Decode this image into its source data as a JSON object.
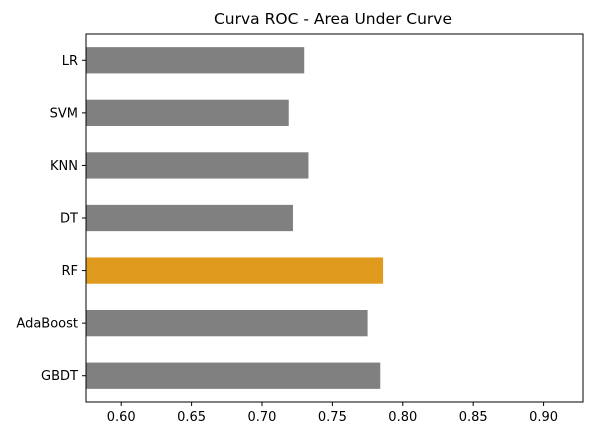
{
  "chart_data": {
    "type": "bar",
    "orientation": "horizontal",
    "title": "Curva ROC - Area Under Curve",
    "xlabel": "",
    "ylabel": "",
    "categories": [
      "LR",
      "SVM",
      "KNN",
      "DT",
      "RF",
      "AdaBoost",
      "GBDT"
    ],
    "values": [
      0.73,
      0.719,
      0.733,
      0.722,
      0.786,
      0.775,
      0.784
    ],
    "xlim": [
      0.575,
      0.928
    ],
    "xticks": [
      0.6,
      0.65,
      0.7,
      0.75,
      0.8,
      0.85,
      0.9
    ],
    "xtick_labels": [
      "0.60",
      "0.65",
      "0.70",
      "0.75",
      "0.80",
      "0.85",
      "0.90"
    ],
    "grid": false,
    "colors": {
      "default": "#808080",
      "highlight": "#E09B1F",
      "highlight_category": "RF"
    }
  }
}
